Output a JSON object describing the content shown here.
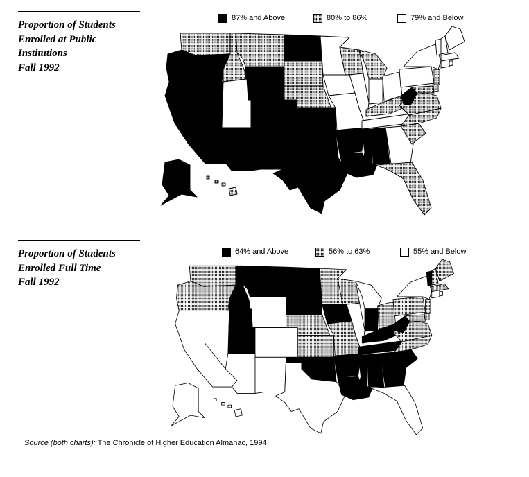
{
  "colors": {
    "solid": "#000000",
    "dotted": "#000000",
    "none": "#ffffff",
    "line": "#000000"
  },
  "maps": [
    {
      "title": "Proportion of Students\nEnrolled at Public\nInstitutions\nFall 1992",
      "legend": [
        {
          "label": "87% and Above",
          "pattern": "solid"
        },
        {
          "label": "80% to 86%",
          "pattern": "dotted"
        },
        {
          "label": "79% and Below",
          "pattern": "white"
        }
      ],
      "states": {
        "WA": "dotted",
        "OR": "solid",
        "CA": "solid",
        "NV": "solid",
        "ID": "dotted",
        "MT": "dotted",
        "WY": "solid",
        "UT": "white",
        "CO": "solid",
        "AZ": "solid",
        "NM": "solid",
        "ND": "solid",
        "SD": "dotted",
        "NE": "dotted",
        "KS": "solid",
        "OK": "solid",
        "TX": "solid",
        "MN": "white",
        "IA": "white",
        "MO": "white",
        "AR": "solid",
        "LA": "solid",
        "WI": "dotted",
        "IL": "white",
        "MI": "dotted",
        "IN": "white",
        "OH": "white",
        "KY": "dotted",
        "TN": "white",
        "MS": "solid",
        "AL": "solid",
        "GA": "white",
        "FL": "dotted",
        "SC": "dotted",
        "NC": "dotted",
        "VA": "dotted",
        "WV": "solid",
        "MD": "dotted",
        "DE": "dotted",
        "PA": "white",
        "NY": "white",
        "NJ": "dotted",
        "CT": "white",
        "RI": "white",
        "MA": "white",
        "VT": "white",
        "NH": "white",
        "ME": "white",
        "AK": "solid",
        "HI": "dotted"
      }
    },
    {
      "title": "Proportion of Students\nEnrolled Full Time\nFall 1992",
      "legend": [
        {
          "label": "64% and Above",
          "pattern": "solid"
        },
        {
          "label": "56% to 63%",
          "pattern": "dotted"
        },
        {
          "label": "55% and Below",
          "pattern": "white"
        }
      ],
      "states": {
        "WA": "dotted",
        "OR": "dotted",
        "CA": "white",
        "NV": "white",
        "ID": "solid",
        "MT": "solid",
        "WY": "white",
        "UT": "solid",
        "CO": "white",
        "AZ": "white",
        "NM": "white",
        "ND": "solid",
        "SD": "solid",
        "NE": "dotted",
        "KS": "dotted",
        "OK": "solid",
        "TX": "white",
        "MN": "dotted",
        "IA": "solid",
        "MO": "dotted",
        "AR": "solid",
        "LA": "solid",
        "WI": "dotted",
        "IL": "white",
        "MI": "white",
        "IN": "solid",
        "OH": "dotted",
        "KY": "solid",
        "TN": "solid",
        "MS": "solid",
        "AL": "solid",
        "GA": "solid",
        "FL": "white",
        "SC": "solid",
        "NC": "dotted",
        "VA": "dotted",
        "WV": "solid",
        "MD": "dotted",
        "DE": "dotted",
        "PA": "dotted",
        "NY": "white",
        "NJ": "dotted",
        "CT": "white",
        "RI": "white",
        "MA": "dotted",
        "VT": "solid",
        "NH": "dotted",
        "ME": "dotted",
        "AK": "white",
        "HI": "white"
      }
    }
  ],
  "source": {
    "prefix": "Source (both charts):",
    "text": " The Chronicle of Higher Education Almanac, 1994"
  }
}
